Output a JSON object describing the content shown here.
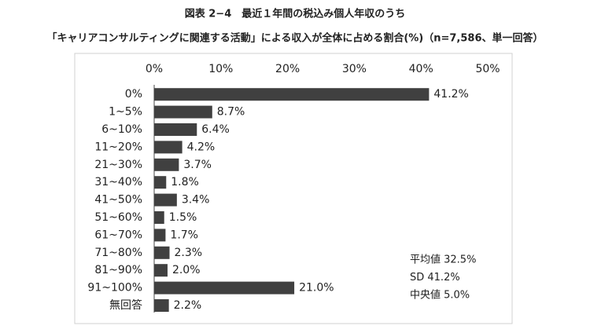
{
  "chart_data": {
    "type": "barh",
    "title": "図表 2−4　最近１年間の税込み個人年収のうち",
    "subtitle": "「キャリアコンサルティングに関連する活動」による収入が全体に占める割合(%)（n=7,586、単一回答）",
    "categories": [
      "0%",
      "1~5%",
      "6~10%",
      "11~20%",
      "21~30%",
      "31~40%",
      "41~50%",
      "51~60%",
      "61~70%",
      "71~80%",
      "81~90%",
      "91~100%",
      "無回答"
    ],
    "values": [
      41.2,
      8.7,
      6.4,
      4.2,
      3.7,
      1.8,
      3.4,
      1.5,
      1.7,
      2.3,
      2.0,
      21.0,
      2.2
    ],
    "value_labels": [
      "41.2%",
      "8.7%",
      "6.4%",
      "4.2%",
      "3.7%",
      "1.8%",
      "3.4%",
      "1.5%",
      "1.7%",
      "2.3%",
      "2.0%",
      "21.0%",
      "2.2%"
    ],
    "color": "#404040",
    "xlim": [
      0,
      50
    ],
    "xticks": [
      {
        "value": 0,
        "label": "0%"
      },
      {
        "value": 10,
        "label": "10%"
      },
      {
        "value": 20,
        "label": "20%"
      },
      {
        "value": 30,
        "label": "30%"
      },
      {
        "value": 40,
        "label": "40%"
      },
      {
        "value": 50,
        "label": "50%"
      }
    ],
    "annotations": [
      "平均値 32.5%",
      "SD 41.2%",
      "中央値 5.0%"
    ]
  }
}
